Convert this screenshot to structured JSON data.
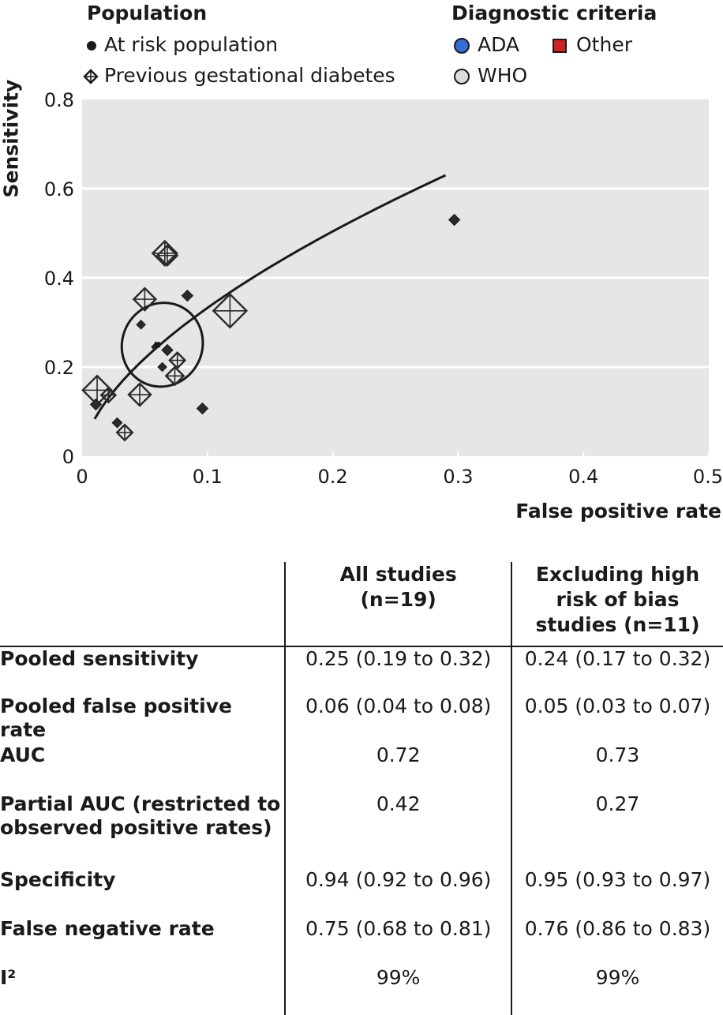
{
  "legend": {
    "population": {
      "title": "Population",
      "items": [
        {
          "label": "At risk population",
          "marker": "dot"
        },
        {
          "label": "Previous gestational diabetes",
          "marker": "crossed-diamond"
        }
      ]
    },
    "criteria": {
      "title": "Diagnostic criteria",
      "items": [
        {
          "label": "ADA",
          "color": "#2f6fd6"
        },
        {
          "label": "Other",
          "color": "#d12020"
        },
        {
          "label": "WHO",
          "color": "#dcdcdc"
        }
      ]
    }
  },
  "chart_data": {
    "type": "scatter",
    "xlabel": "False positive rate",
    "ylabel": "Sensitivity",
    "xlim": [
      0,
      0.5
    ],
    "ylim": [
      0,
      0.8
    ],
    "x_ticks": [
      "0",
      "0.1",
      "0.2",
      "0.3",
      "0.4",
      "0.5"
    ],
    "y_ticks": [
      "0",
      "0.2",
      "0.4",
      "0.6",
      "0.8"
    ],
    "grid": true,
    "background": "#e6e6e6",
    "points_at_risk": [
      {
        "x": 0.297,
        "y": 0.53,
        "size": 1.0
      },
      {
        "x": 0.084,
        "y": 0.36,
        "size": 1.0
      },
      {
        "x": 0.047,
        "y": 0.295,
        "size": 0.8
      },
      {
        "x": 0.068,
        "y": 0.238,
        "size": 1.0
      },
      {
        "x": 0.064,
        "y": 0.2,
        "size": 0.8
      },
      {
        "x": 0.058,
        "y": 0.245,
        "size": 0.6
      },
      {
        "x": 0.096,
        "y": 0.107,
        "size": 1.0
      },
      {
        "x": 0.028,
        "y": 0.075,
        "size": 0.9
      },
      {
        "x": 0.011,
        "y": 0.116,
        "size": 1.0
      }
    ],
    "points_previous_gdm": [
      {
        "x": 0.066,
        "y": 0.455,
        "size": 2.2
      },
      {
        "x": 0.068,
        "y": 0.45,
        "size": 1.8
      },
      {
        "x": 0.05,
        "y": 0.352,
        "size": 2.0
      },
      {
        "x": 0.118,
        "y": 0.326,
        "size": 3.0
      },
      {
        "x": 0.076,
        "y": 0.215,
        "size": 1.4
      },
      {
        "x": 0.074,
        "y": 0.18,
        "size": 1.6
      },
      {
        "x": 0.046,
        "y": 0.138,
        "size": 2.0
      },
      {
        "x": 0.021,
        "y": 0.137,
        "size": 1.3
      },
      {
        "x": 0.012,
        "y": 0.148,
        "size": 2.6
      },
      {
        "x": 0.034,
        "y": 0.053,
        "size": 1.4
      }
    ],
    "summary_point": {
      "x": 0.06,
      "y": 0.25
    },
    "curve": {
      "x_from": 0.01,
      "x_to": 0.29,
      "a": 0.63,
      "b": 0.6
    },
    "confidence_ellipse": {
      "cx": 0.064,
      "cy": 0.25,
      "rx": 0.041,
      "ry": 0.1,
      "rotation_deg": 26
    }
  },
  "table": {
    "headers": [
      "",
      "All studies\n(n=19)",
      "Excluding high\nrisk of bias\nstudies (n=11)"
    ],
    "rows": [
      {
        "label": "Pooled sensitivity",
        "all": "0.25 (0.19 to 0.32)",
        "excl": "0.24 (0.17 to 0.32)"
      },
      {
        "label": "Pooled false positive rate",
        "all": "0.06 (0.04 to 0.08)",
        "excl": "0.05 (0.03 to 0.07)"
      },
      {
        "label": "AUC",
        "all": "0.72",
        "excl": "0.73"
      },
      {
        "label": "Partial AUC (restricted to\nobserved positive rates)",
        "all": "0.42",
        "excl": "0.27"
      },
      {
        "label": "Specificity",
        "all": "0.94 (0.92 to 0.96)",
        "excl": "0.95 (0.93 to 0.97)"
      },
      {
        "label": "False negative rate",
        "all": "0.75 (0.68 to 0.81)",
        "excl": "0.76 (0.86 to 0.83)"
      },
      {
        "label": "I²",
        "all": "99%",
        "excl": "99%"
      }
    ]
  }
}
